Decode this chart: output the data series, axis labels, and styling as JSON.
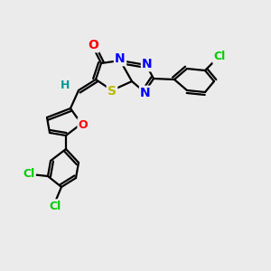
{
  "background_color": "#ebebeb",
  "atom_colors": {
    "C": "#000000",
    "N": "#0000ff",
    "O": "#ff0000",
    "S": "#bbbb00",
    "Cl": "#00cc00",
    "H": "#009999"
  },
  "bond_color": "#000000",
  "bond_lw": 1.6,
  "font_size_main": 10,
  "font_size_small": 9
}
